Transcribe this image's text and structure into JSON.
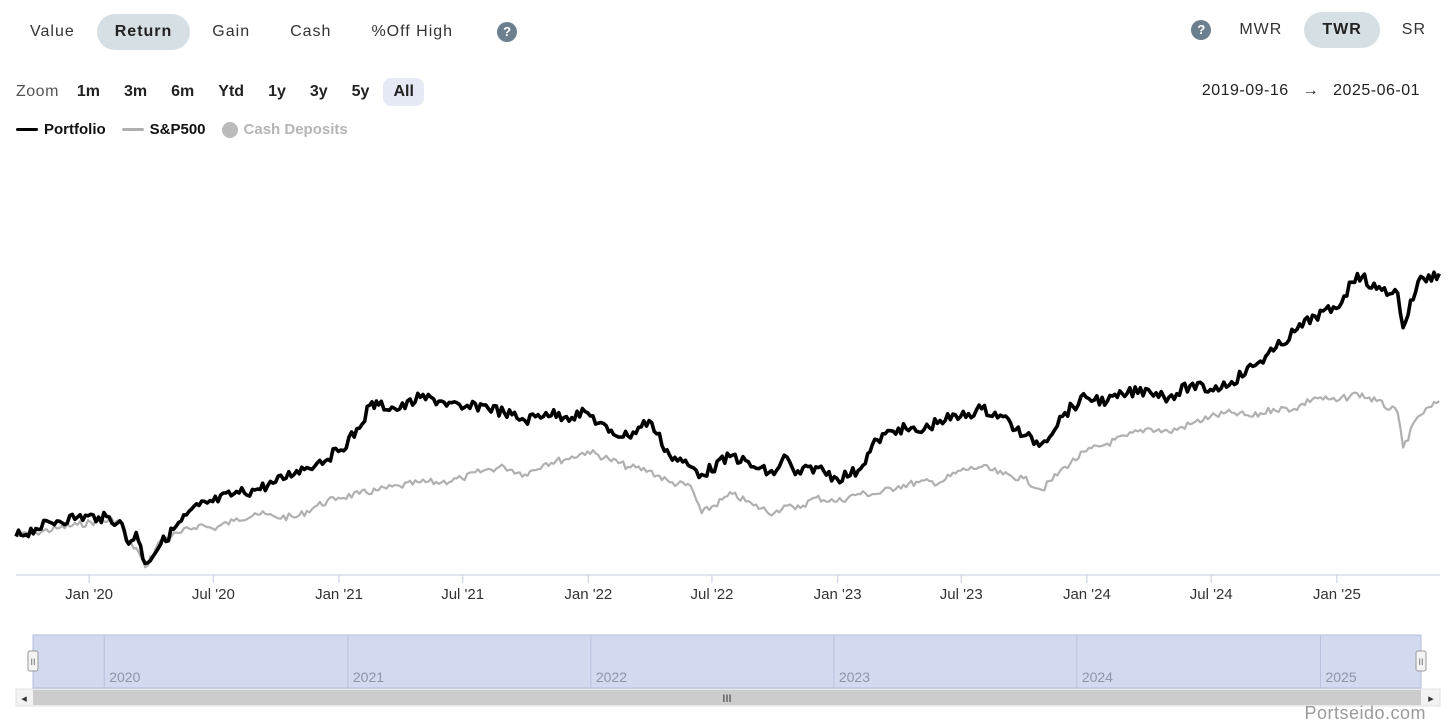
{
  "metric_tabs": [
    {
      "label": "Value",
      "active": false
    },
    {
      "label": "Return",
      "active": true
    },
    {
      "label": "Gain",
      "active": false
    },
    {
      "label": "Cash",
      "active": false
    },
    {
      "label": "%Off High",
      "active": false
    }
  ],
  "help_glyph": "?",
  "method_tabs": [
    {
      "label": "MWR",
      "active": false
    },
    {
      "label": "TWR",
      "active": true
    },
    {
      "label": "SR",
      "active": false
    }
  ],
  "zoom": {
    "label": "Zoom",
    "options": [
      "1m",
      "3m",
      "6m",
      "Ytd",
      "1y",
      "3y",
      "5y",
      "All"
    ],
    "active": "All"
  },
  "date_range": {
    "start": "2019-09-16",
    "arrow": "→",
    "end": "2025-06-01"
  },
  "watermark": "Portseido.com",
  "navigator": {
    "year_labels": [
      "2020",
      "2021",
      "2022",
      "2023",
      "2024",
      "2025"
    ],
    "scroll_left": "◂",
    "scroll_right": "▸",
    "thumb_grip": "III",
    "handle_grip": "II"
  },
  "colors": {
    "portfolio": "#000000",
    "sp500": "#b0b0b0",
    "cash_deposits": "#bbbbbb",
    "axis": "#c5cbe3",
    "navigator_fill": "#d2daef",
    "navigator_outline": "#b4bedf"
  },
  "chart_data": {
    "type": "line",
    "x_ticks": [
      "Jan '20",
      "Jul '20",
      "Jan '21",
      "Jul '21",
      "Jan '22",
      "Jul '22",
      "Jan '23",
      "Jul '23",
      "Jan '24",
      "Jul '24",
      "Jan '25"
    ],
    "x_tick_dates": [
      "2020-01-01",
      "2020-07-01",
      "2021-01-01",
      "2021-07-01",
      "2022-01-01",
      "2022-07-01",
      "2023-01-01",
      "2023-07-01",
      "2024-01-01",
      "2024-07-01",
      "2025-01-01"
    ],
    "x_range": [
      "2019-09-16",
      "2025-06-01"
    ],
    "y_axis_labels": false,
    "y_range": [
      -10,
      100
    ],
    "grid": false,
    "legend_position": "top-left",
    "series": [
      {
        "name": "Portfolio",
        "legend_marker": "line",
        "x": [
          "2019-09-16",
          "2019-10-15",
          "2019-11-15",
          "2019-12-15",
          "2020-01-15",
          "2020-02-15",
          "2020-02-28",
          "2020-03-10",
          "2020-03-23",
          "2020-04-15",
          "2020-05-15",
          "2020-06-10",
          "2020-06-30",
          "2020-07-31",
          "2020-08-31",
          "2020-09-30",
          "2020-10-31",
          "2020-11-30",
          "2020-12-31",
          "2021-01-31",
          "2021-02-15",
          "2021-02-28",
          "2021-03-31",
          "2021-04-30",
          "2021-05-31",
          "2021-06-30",
          "2021-07-31",
          "2021-08-31",
          "2021-09-30",
          "2021-10-31",
          "2021-11-30",
          "2021-12-31",
          "2022-01-31",
          "2022-02-28",
          "2022-03-31",
          "2022-04-30",
          "2022-05-31",
          "2022-06-16",
          "2022-07-31",
          "2022-08-31",
          "2022-09-30",
          "2022-10-15",
          "2022-10-31",
          "2022-11-30",
          "2022-12-31",
          "2023-01-31",
          "2023-02-28",
          "2023-03-31",
          "2023-04-30",
          "2023-05-31",
          "2023-06-30",
          "2023-07-31",
          "2023-08-31",
          "2023-09-30",
          "2023-10-27",
          "2023-11-30",
          "2023-12-31",
          "2024-01-31",
          "2024-02-29",
          "2024-03-31",
          "2024-04-30",
          "2024-05-31",
          "2024-06-30",
          "2024-07-31",
          "2024-08-31",
          "2024-09-30",
          "2024-10-31",
          "2024-11-30",
          "2024-12-31",
          "2025-01-31",
          "2025-02-28",
          "2025-03-31",
          "2025-04-08",
          "2025-04-30",
          "2025-05-31"
        ],
        "y": [
          0,
          2,
          4,
          5,
          5,
          4,
          -2,
          1,
          -7,
          -2,
          4,
          8,
          9,
          11,
          12,
          14,
          17,
          19,
          22,
          28,
          34,
          34,
          33,
          36,
          35,
          33,
          34,
          32,
          30,
          32,
          31,
          32,
          27,
          26,
          30,
          21,
          18,
          16,
          21,
          18,
          16,
          21,
          16,
          18,
          15,
          17,
          25,
          28,
          27,
          30,
          31,
          33,
          31,
          26,
          24,
          32,
          36,
          35,
          37,
          38,
          36,
          39,
          38,
          40,
          44,
          48,
          53,
          57,
          59,
          68,
          64,
          63,
          54,
          66,
          68
        ]
      },
      {
        "name": "S&P500",
        "legend_marker": "line",
        "x": [
          "2019-09-16",
          "2019-10-15",
          "2019-11-15",
          "2019-12-15",
          "2020-01-15",
          "2020-02-15",
          "2020-02-28",
          "2020-03-10",
          "2020-03-23",
          "2020-04-15",
          "2020-05-15",
          "2020-06-10",
          "2020-06-30",
          "2020-07-31",
          "2020-08-31",
          "2020-09-30",
          "2020-10-31",
          "2020-11-30",
          "2020-12-31",
          "2021-01-31",
          "2021-02-28",
          "2021-03-31",
          "2021-04-30",
          "2021-05-31",
          "2021-06-30",
          "2021-07-31",
          "2021-08-31",
          "2021-09-30",
          "2021-10-31",
          "2021-11-30",
          "2021-12-31",
          "2022-01-31",
          "2022-02-28",
          "2022-03-31",
          "2022-04-30",
          "2022-05-31",
          "2022-06-16",
          "2022-07-31",
          "2022-08-31",
          "2022-09-30",
          "2022-10-15",
          "2022-10-31",
          "2022-11-30",
          "2022-12-31",
          "2023-01-31",
          "2023-02-28",
          "2023-03-31",
          "2023-04-30",
          "2023-05-31",
          "2023-06-30",
          "2023-07-31",
          "2023-08-31",
          "2023-09-30",
          "2023-10-27",
          "2023-11-30",
          "2023-12-31",
          "2024-01-31",
          "2024-02-29",
          "2024-03-31",
          "2024-04-30",
          "2024-05-31",
          "2024-06-30",
          "2024-07-31",
          "2024-08-31",
          "2024-09-30",
          "2024-10-31",
          "2024-11-30",
          "2024-12-31",
          "2025-01-31",
          "2025-02-28",
          "2025-03-31",
          "2025-04-08",
          "2025-04-30",
          "2025-05-31"
        ],
        "y": [
          0,
          1,
          2,
          3,
          4,
          4,
          -2,
          -3,
          -8,
          -1,
          1,
          3,
          2,
          4,
          6,
          5,
          5,
          8,
          10,
          11,
          12,
          13,
          14,
          14,
          15,
          17,
          18,
          16,
          19,
          20,
          22,
          20,
          18,
          17,
          14,
          13,
          6,
          11,
          8,
          6,
          8,
          7,
          10,
          9,
          11,
          11,
          13,
          14,
          14,
          17,
          18,
          16,
          15,
          12,
          18,
          22,
          24,
          26,
          28,
          27,
          29,
          31,
          32,
          31,
          33,
          33,
          36,
          35,
          37,
          35,
          32,
          23,
          31,
          35
        ]
      }
    ],
    "extra_legend": {
      "name": "Cash Deposits",
      "legend_marker": "dot",
      "visible": false
    }
  }
}
